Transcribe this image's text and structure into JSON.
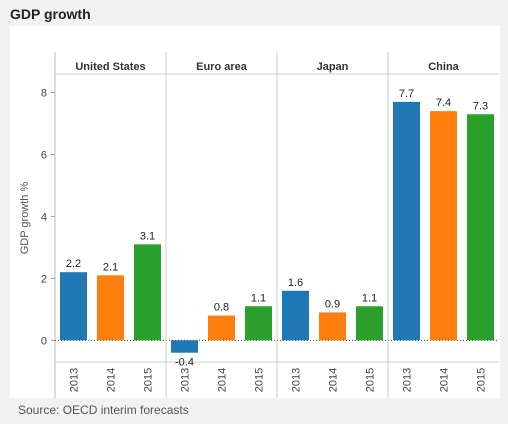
{
  "title": "GDP growth",
  "source": "Source: OECD interim forecasts",
  "chart_data": {
    "type": "bar",
    "title": "GDP growth",
    "ylabel": "GDP growth %",
    "xlabel": "",
    "ylim": [
      -0.7,
      8.6
    ],
    "yticks": [
      0,
      2,
      4,
      6,
      8
    ],
    "grid": false,
    "panels": [
      {
        "name": "United States",
        "categories": [
          "2013",
          "2014",
          "2015"
        ],
        "values": [
          2.2,
          2.1,
          3.1
        ]
      },
      {
        "name": "Euro area",
        "categories": [
          "2013",
          "2014",
          "2015"
        ],
        "values": [
          -0.4,
          0.8,
          1.1
        ]
      },
      {
        "name": "Japan",
        "categories": [
          "2013",
          "2014",
          "2015"
        ],
        "values": [
          1.6,
          0.9,
          1.1
        ]
      },
      {
        "name": "China",
        "categories": [
          "2013",
          "2014",
          "2015"
        ],
        "values": [
          7.7,
          7.4,
          7.3
        ]
      }
    ],
    "year_colors": {
      "2013": "#1f77b4",
      "2014": "#ff7f0e",
      "2015": "#2ca02c"
    },
    "value_labels": {
      "United States": [
        "2.2",
        "2.1",
        "3.1"
      ],
      "Euro area": [
        "-0.4",
        "0.8",
        "1.1"
      ],
      "Japan": [
        "1.6",
        "0.9",
        "1.1"
      ],
      "China": [
        "7.7",
        "7.4",
        "7.3"
      ]
    }
  }
}
